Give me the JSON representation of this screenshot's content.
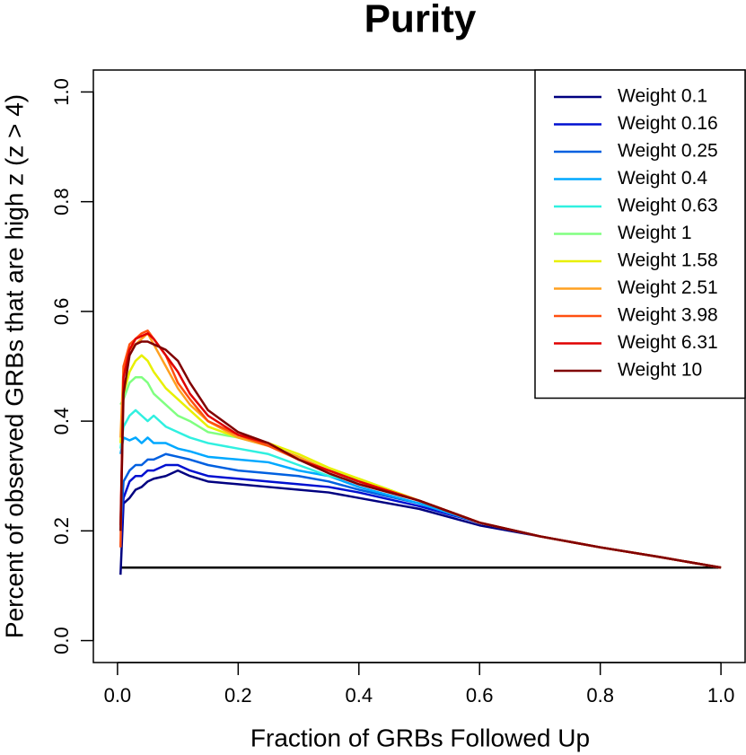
{
  "chart_data": {
    "type": "line",
    "title": "Purity",
    "x_label": "Fraction of GRBs Followed Up",
    "y_label": "Percent of observed GRBs that are high z (z > 4)",
    "xlim": [
      -0.04,
      1.04
    ],
    "ylim": [
      -0.04,
      1.04
    ],
    "xticks": [
      {
        "value": 0,
        "label": "0.0"
      },
      0.2,
      0.4,
      0.6,
      0.8,
      {
        "value": 1,
        "label": "1.0"
      }
    ],
    "yticks": [
      {
        "value": 0,
        "label": "0.0"
      },
      0.2,
      0.4,
      0.6,
      0.8,
      {
        "value": 1,
        "label": "1.0"
      }
    ],
    "legend_position": "topright",
    "x": [
      0.005,
      0.01,
      0.02,
      0.03,
      0.04,
      0.05,
      0.06,
      0.08,
      0.1,
      0.12,
      0.15,
      0.2,
      0.25,
      0.3,
      0.35,
      0.4,
      0.5,
      0.6,
      0.7,
      0.8,
      0.9,
      1.0
    ],
    "series": [
      {
        "name": "Weight 0.1",
        "color": "#000080",
        "values": [
          0.12,
          0.25,
          0.26,
          0.275,
          0.28,
          0.29,
          0.295,
          0.3,
          0.31,
          0.3,
          0.29,
          0.285,
          0.28,
          0.275,
          0.27,
          0.26,
          0.24,
          0.21,
          0.19,
          0.17,
          0.152,
          0.133
        ]
      },
      {
        "name": "Weight 0.16",
        "color": "#0010d0",
        "values": [
          0.17,
          0.26,
          0.29,
          0.3,
          0.3,
          0.31,
          0.31,
          0.32,
          0.32,
          0.31,
          0.3,
          0.295,
          0.29,
          0.285,
          0.28,
          0.27,
          0.245,
          0.215,
          0.19,
          0.17,
          0.152,
          0.133
        ]
      },
      {
        "name": "Weight 0.25",
        "color": "#0060e0",
        "values": [
          0.2,
          0.29,
          0.31,
          0.32,
          0.32,
          0.33,
          0.33,
          0.34,
          0.335,
          0.33,
          0.32,
          0.31,
          0.305,
          0.3,
          0.29,
          0.275,
          0.25,
          0.215,
          0.19,
          0.17,
          0.152,
          0.133
        ]
      },
      {
        "name": "Weight 0.4",
        "color": "#00a8ff",
        "values": [
          0.34,
          0.37,
          0.365,
          0.37,
          0.36,
          0.37,
          0.36,
          0.36,
          0.35,
          0.345,
          0.335,
          0.33,
          0.325,
          0.31,
          0.3,
          0.28,
          0.25,
          0.215,
          0.19,
          0.17,
          0.152,
          0.133
        ]
      },
      {
        "name": "Weight 0.63",
        "color": "#30f0e0",
        "values": [
          0.35,
          0.39,
          0.41,
          0.42,
          0.41,
          0.4,
          0.41,
          0.39,
          0.38,
          0.37,
          0.36,
          0.35,
          0.34,
          0.32,
          0.3,
          0.29,
          0.255,
          0.215,
          0.19,
          0.17,
          0.152,
          0.133
        ]
      },
      {
        "name": "Weight 1",
        "color": "#80ff80",
        "values": [
          0.43,
          0.44,
          0.47,
          0.48,
          0.48,
          0.47,
          0.45,
          0.43,
          0.41,
          0.4,
          0.38,
          0.37,
          0.355,
          0.335,
          0.31,
          0.295,
          0.255,
          0.215,
          0.19,
          0.17,
          0.152,
          0.133
        ]
      },
      {
        "name": "Weight 1.58",
        "color": "#e8f000",
        "values": [
          0.36,
          0.45,
          0.49,
          0.51,
          0.52,
          0.51,
          0.49,
          0.46,
          0.44,
          0.42,
          0.39,
          0.37,
          0.36,
          0.34,
          0.315,
          0.295,
          0.255,
          0.215,
          0.19,
          0.17,
          0.152,
          0.133
        ]
      },
      {
        "name": "Weight 2.51",
        "color": "#ffa020",
        "values": [
          0.37,
          0.5,
          0.53,
          0.54,
          0.55,
          0.56,
          0.54,
          0.5,
          0.46,
          0.43,
          0.4,
          0.37,
          0.355,
          0.335,
          0.31,
          0.29,
          0.255,
          0.215,
          0.19,
          0.17,
          0.152,
          0.133
        ]
      },
      {
        "name": "Weight 3.98",
        "color": "#ff5010",
        "values": [
          0.17,
          0.5,
          0.54,
          0.55,
          0.56,
          0.565,
          0.55,
          0.52,
          0.47,
          0.44,
          0.4,
          0.375,
          0.355,
          0.33,
          0.31,
          0.29,
          0.255,
          0.215,
          0.19,
          0.17,
          0.152,
          0.133
        ]
      },
      {
        "name": "Weight 6.31",
        "color": "#e00000",
        "values": [
          0.21,
          0.48,
          0.53,
          0.55,
          0.555,
          0.56,
          0.55,
          0.52,
          0.49,
          0.45,
          0.41,
          0.375,
          0.36,
          0.33,
          0.31,
          0.29,
          0.255,
          0.215,
          0.19,
          0.17,
          0.152,
          0.133
        ]
      },
      {
        "name": "Weight 10",
        "color": "#800000",
        "values": [
          0.2,
          0.45,
          0.52,
          0.54,
          0.545,
          0.545,
          0.54,
          0.53,
          0.51,
          0.47,
          0.42,
          0.38,
          0.36,
          0.33,
          0.305,
          0.285,
          0.255,
          0.215,
          0.19,
          0.17,
          0.152,
          0.133
        ]
      }
    ],
    "reference_line": {
      "x": [
        0.005,
        1.0
      ],
      "values": [
        0.133,
        0.133
      ],
      "color": "#000000"
    }
  }
}
